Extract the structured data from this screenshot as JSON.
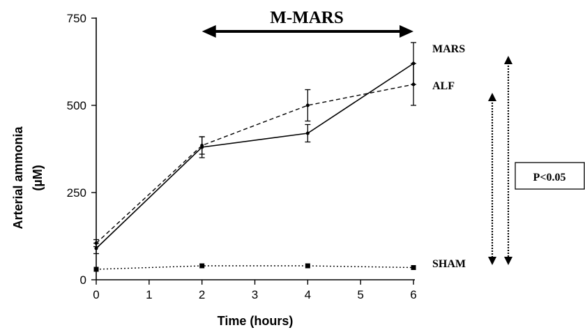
{
  "chart_data": {
    "type": "line",
    "title": "",
    "xlabel": "Time (hours)",
    "ylabel_line1": "Arterial ammonia",
    "ylabel_line2": "(µM)",
    "xlim": [
      0,
      6
    ],
    "ylim": [
      0,
      750
    ],
    "xticks": [
      0,
      1,
      2,
      3,
      4,
      5,
      6
    ],
    "yticks": [
      0,
      250,
      500,
      750
    ],
    "grid": false,
    "series": [
      {
        "name": "MARS",
        "style": "solid",
        "x": [
          0,
          2,
          4,
          6
        ],
        "y": [
          90,
          380,
          420,
          620
        ],
        "err": [
          15,
          30,
          25,
          60
        ]
      },
      {
        "name": "ALF",
        "style": "dashed",
        "x": [
          0,
          2,
          4,
          6
        ],
        "y": [
          105,
          385,
          500,
          560
        ],
        "err": [
          10,
          25,
          45,
          60
        ]
      },
      {
        "name": "SHAM",
        "style": "dotted",
        "x": [
          0,
          2,
          4,
          6
        ],
        "y": [
          30,
          40,
          40,
          35
        ],
        "err": [
          0,
          0,
          0,
          0
        ]
      }
    ],
    "annotations": {
      "treatment_label": "M-MARS",
      "treatment_range": [
        2,
        6
      ],
      "significance_label": "P<0.05"
    }
  }
}
